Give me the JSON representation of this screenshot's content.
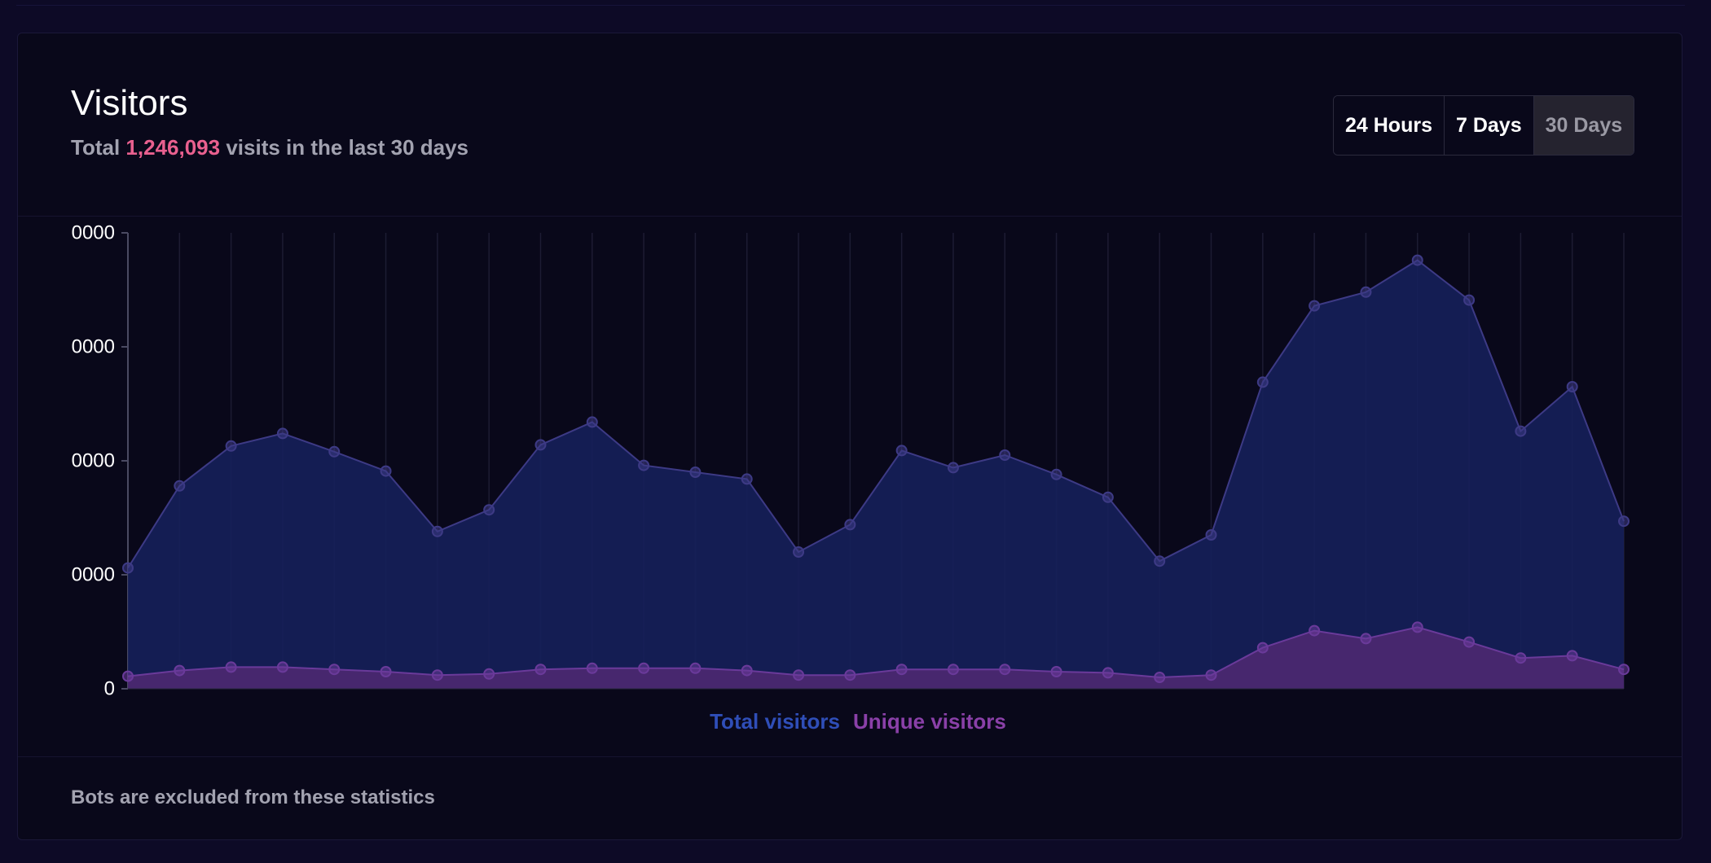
{
  "header": {
    "title": "Visitors",
    "subtitle_prefix": "Total",
    "subtitle_count": "1,246,093",
    "subtitle_suffix": "visits in the last 30 days"
  },
  "range_buttons": [
    {
      "label": "24 Hours",
      "active": false
    },
    {
      "label": "7 Days",
      "active": false
    },
    {
      "label": "30 Days",
      "active": true
    }
  ],
  "footer": {
    "note": "Bots are excluded from these statistics"
  },
  "colors": {
    "total_line": "#3d3a85",
    "total_fill": "#16205a",
    "unique_line": "#6a3a9a",
    "unique_fill": "#4a2870",
    "total_legend": "#2f4eb8",
    "unique_legend": "#8a40a8",
    "accent": "#e9608f"
  },
  "chart_data": {
    "type": "area",
    "y_tick_labels": [
      "0",
      "0000",
      "0000",
      "0000",
      "0000"
    ],
    "y_tick_values": [
      0,
      1,
      2,
      3,
      4
    ],
    "ylim": [
      0,
      4
    ],
    "grid": "vertical",
    "legend_position": "bottom",
    "x": [
      1,
      2,
      3,
      4,
      5,
      6,
      7,
      8,
      9,
      10,
      11,
      12,
      13,
      14,
      15,
      16,
      17,
      18,
      19,
      20,
      21,
      22,
      23,
      24,
      25,
      26,
      27,
      28,
      29,
      30
    ],
    "series": [
      {
        "name": "Total visitors",
        "values": [
          1.06,
          1.78,
          2.13,
          2.24,
          2.08,
          1.91,
          1.38,
          1.57,
          2.14,
          2.34,
          1.96,
          1.9,
          1.84,
          1.2,
          1.44,
          2.09,
          1.94,
          2.05,
          1.88,
          1.68,
          1.12,
          1.35,
          2.69,
          3.36,
          3.48,
          3.76,
          3.41,
          2.26,
          2.65,
          1.47
        ]
      },
      {
        "name": "Unique visitors",
        "values": [
          0.11,
          0.16,
          0.19,
          0.19,
          0.17,
          0.15,
          0.12,
          0.13,
          0.17,
          0.18,
          0.18,
          0.18,
          0.16,
          0.12,
          0.12,
          0.17,
          0.17,
          0.17,
          0.15,
          0.14,
          0.1,
          0.12,
          0.36,
          0.51,
          0.44,
          0.54,
          0.41,
          0.27,
          0.29,
          0.17
        ]
      }
    ]
  }
}
